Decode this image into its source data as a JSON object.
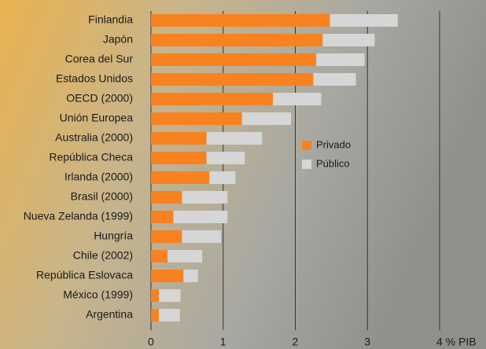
{
  "chart_data": {
    "type": "stacked-bar-horizontal",
    "categories": [
      "Finlandia",
      "Japón",
      "Corea del Sur",
      "Estados Unidos",
      "OECD (2000)",
      "Unión Europea",
      "Australia (2000)",
      "República Checa",
      "Irlanda (2000)",
      "Brasil (2000)",
      "Nueva Zelanda (1999)",
      "Hungría",
      "Chile (2002)",
      "República Eslovaca",
      "México (1999)",
      "Argentina"
    ],
    "series": [
      {
        "name": "Privado",
        "color": "#f7821f",
        "values": [
          2.48,
          2.38,
          2.29,
          2.25,
          1.69,
          1.26,
          0.77,
          0.77,
          0.81,
          0.43,
          0.31,
          0.43,
          0.23,
          0.45,
          0.11,
          0.11
        ]
      },
      {
        "name": "Público",
        "color": "#d6d6d6",
        "values": [
          0.94,
          0.72,
          0.67,
          0.59,
          0.67,
          0.68,
          0.77,
          0.53,
          0.36,
          0.63,
          0.75,
          0.54,
          0.48,
          0.2,
          0.3,
          0.29
        ]
      }
    ],
    "xlim": [
      0,
      4
    ],
    "xticks": [
      0,
      1,
      2,
      3,
      {
        "value": 4,
        "label": "4 % PIB"
      }
    ],
    "grid": true
  }
}
